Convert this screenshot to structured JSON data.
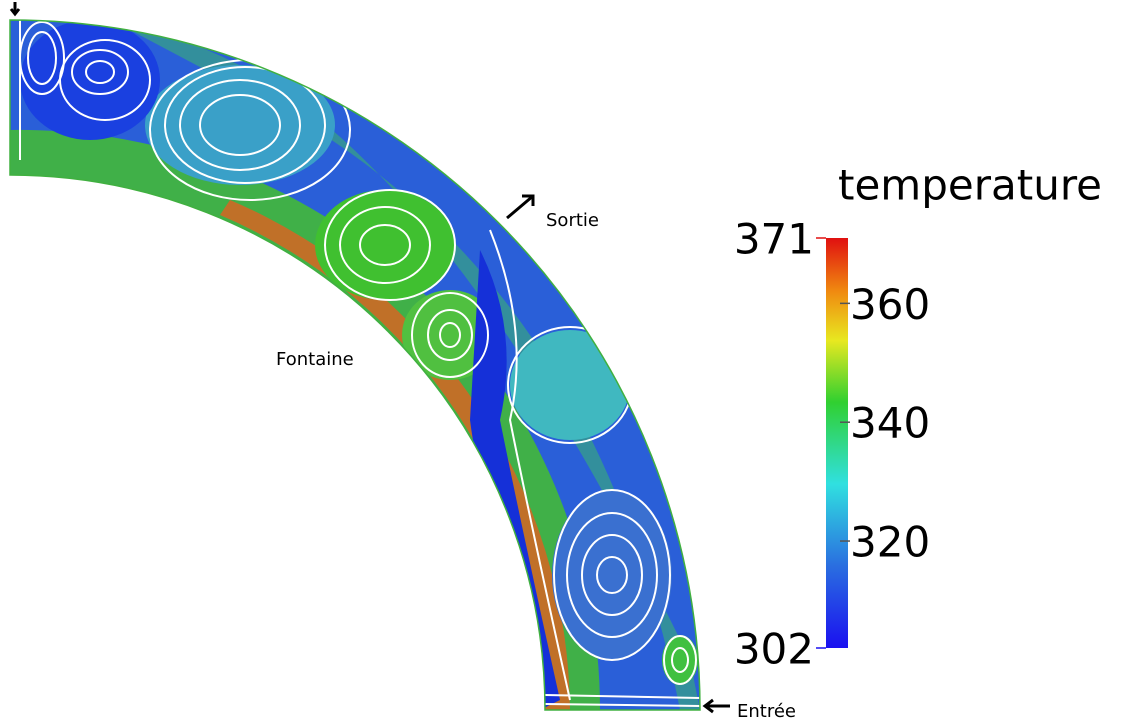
{
  "colorbar": {
    "title": "temperature",
    "range": [
      302,
      371
    ],
    "ticks": [
      360,
      340,
      320
    ]
  },
  "annotations": {
    "outlet": "Sortie",
    "fountain": "Fontaine",
    "inlet": "Entrée"
  }
}
